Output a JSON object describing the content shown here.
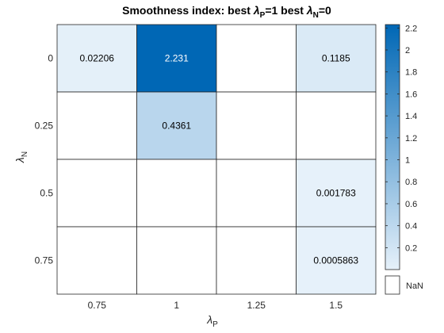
{
  "chart_data": {
    "type": "heatmap",
    "title": "Smoothness index: best λP=1 best  λN=0",
    "title_parts": {
      "prefix": "Smoothness index: best ",
      "lambda": "λ",
      "sub_p": "P",
      "mid": "=1 best  ",
      "sub_n": "N",
      "suffix": "=0"
    },
    "xlabel": {
      "symbol": "λ",
      "sub": "P"
    },
    "ylabel": {
      "symbol": "λ",
      "sub": "N"
    },
    "x_categories": [
      "0.75",
      "1",
      "1.25",
      "1.5"
    ],
    "y_categories": [
      "0",
      "0.25",
      "0.5",
      "0.75"
    ],
    "values": [
      [
        0.02206,
        2.231,
        null,
        0.1185
      ],
      [
        null,
        0.4361,
        null,
        null
      ],
      [
        null,
        null,
        null,
        0.001783
      ],
      [
        null,
        null,
        null,
        0.0005863
      ]
    ],
    "value_labels": [
      [
        "0.02206",
        "2.231",
        "",
        "0.1185"
      ],
      [
        "",
        "0.4361",
        "",
        ""
      ],
      [
        "",
        "",
        "",
        "0.001783"
      ],
      [
        "",
        "",
        "",
        "0.0005863"
      ]
    ],
    "colorbar": {
      "min": 0.0005863,
      "max": 2.231,
      "ticks": [
        "0.2",
        "0.4",
        "0.6",
        "0.8",
        "1",
        "1.2",
        "1.4",
        "1.6",
        "1.8",
        "2",
        "2.2"
      ],
      "tick_values": [
        0.2,
        0.4,
        0.6,
        0.8,
        1,
        1.2,
        1.4,
        1.6,
        1.8,
        2,
        2.2
      ],
      "low_color": "#e6f1fa",
      "high_color": "#0067b5",
      "nan_label": "NaN",
      "nan_color": "#ffffff"
    },
    "grid": true
  }
}
